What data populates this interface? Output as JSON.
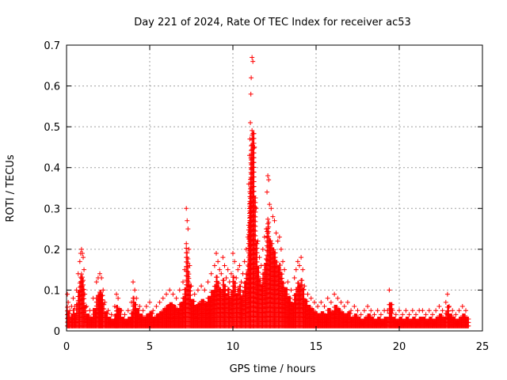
{
  "chart_data": {
    "type": "scatter",
    "title": "Day 221 of 2024, Rate Of TEC Index for receiver ac53",
    "xlabel": "GPS time / hours",
    "ylabel": "ROTI / TECUs",
    "xlim": [
      0,
      25
    ],
    "ylim": [
      0,
      0.7
    ],
    "xticks": [
      "0",
      "5",
      "10",
      "15",
      "20",
      "25"
    ],
    "yticks": [
      "0",
      "0.1",
      "0.2",
      "0.3",
      "0.4",
      "0.5",
      "0.6",
      "0.7"
    ],
    "grid": true,
    "marker": "plus",
    "color": "#ff0000",
    "series": [
      {
        "x": [
          0.05,
          0.1,
          0.2,
          0.3,
          0.4,
          0.5,
          0.6,
          0.7,
          0.8,
          0.85,
          0.9,
          0.95,
          1.0,
          1.05,
          1.1,
          1.2,
          1.4,
          1.6,
          1.8,
          1.9,
          2.0,
          2.1,
          2.2,
          2.3,
          2.5,
          2.7,
          2.9,
          3.0,
          3.1,
          3.3,
          3.5,
          3.7,
          3.9,
          4.0,
          4.1,
          4.2,
          4.4,
          4.6,
          4.8,
          5.0,
          5.2,
          5.4,
          5.6,
          5.8,
          6.0,
          6.2,
          6.4,
          6.6,
          6.8,
          7.0,
          7.1,
          7.2,
          7.25,
          7.3,
          7.35,
          7.4,
          7.5,
          7.7,
          7.9,
          8.1,
          8.3,
          8.5,
          8.7,
          8.9,
          9.0,
          9.1,
          9.2,
          9.3,
          9.4,
          9.5,
          9.6,
          9.7,
          9.8,
          9.9,
          10.0,
          10.1,
          10.2,
          10.3,
          10.4,
          10.5,
          10.6,
          10.7,
          10.8,
          10.9,
          10.95,
          11.0,
          11.02,
          11.05,
          11.08,
          11.1,
          11.15,
          11.2,
          11.3,
          11.4,
          11.5,
          11.6,
          11.7,
          11.8,
          11.9,
          12.0,
          12.05,
          12.1,
          12.15,
          12.2,
          12.3,
          12.4,
          12.5,
          12.6,
          12.7,
          12.8,
          12.9,
          13.0,
          13.1,
          13.3,
          13.5,
          13.7,
          13.8,
          13.9,
          14.0,
          14.1,
          14.2,
          14.3,
          14.5,
          14.7,
          14.9,
          15.1,
          15.3,
          15.5,
          15.7,
          15.9,
          16.1,
          16.3,
          16.5,
          16.7,
          16.9,
          17.1,
          17.3,
          17.5,
          17.7,
          17.9,
          18.1,
          18.3,
          18.5,
          18.7,
          18.9,
          19.1,
          19.3,
          19.4,
          19.6,
          19.8,
          20.0,
          20.2,
          20.4,
          20.6,
          20.8,
          21.0,
          21.2,
          21.4,
          21.6,
          21.8,
          22.0,
          22.2,
          22.4,
          22.6,
          22.8,
          22.9,
          23.0,
          23.2,
          23.4,
          23.6,
          23.8,
          24.0
        ],
        "y": [
          0.09,
          0.07,
          0.05,
          0.06,
          0.08,
          0.06,
          0.1,
          0.14,
          0.17,
          0.19,
          0.2,
          0.19,
          0.18,
          0.15,
          0.09,
          0.06,
          0.05,
          0.08,
          0.12,
          0.13,
          0.14,
          0.13,
          0.1,
          0.07,
          0.05,
          0.04,
          0.06,
          0.09,
          0.08,
          0.05,
          0.04,
          0.05,
          0.07,
          0.12,
          0.1,
          0.08,
          0.06,
          0.05,
          0.06,
          0.07,
          0.05,
          0.06,
          0.07,
          0.08,
          0.09,
          0.1,
          0.09,
          0.08,
          0.1,
          0.12,
          0.15,
          0.3,
          0.27,
          0.25,
          0.2,
          0.16,
          0.11,
          0.09,
          0.1,
          0.11,
          0.1,
          0.12,
          0.14,
          0.16,
          0.19,
          0.17,
          0.15,
          0.14,
          0.18,
          0.16,
          0.13,
          0.15,
          0.12,
          0.14,
          0.19,
          0.17,
          0.13,
          0.15,
          0.16,
          0.12,
          0.14,
          0.17,
          0.2,
          0.23,
          0.36,
          0.43,
          0.47,
          0.51,
          0.58,
          0.62,
          0.67,
          0.66,
          0.45,
          0.3,
          0.22,
          0.18,
          0.16,
          0.2,
          0.23,
          0.25,
          0.34,
          0.38,
          0.37,
          0.31,
          0.3,
          0.28,
          0.27,
          0.24,
          0.22,
          0.23,
          0.2,
          0.17,
          0.15,
          0.12,
          0.1,
          0.13,
          0.15,
          0.17,
          0.16,
          0.18,
          0.15,
          0.11,
          0.09,
          0.08,
          0.07,
          0.06,
          0.07,
          0.06,
          0.08,
          0.07,
          0.09,
          0.08,
          0.07,
          0.06,
          0.07,
          0.05,
          0.06,
          0.05,
          0.04,
          0.05,
          0.06,
          0.05,
          0.04,
          0.05,
          0.04,
          0.05,
          0.05,
          0.1,
          0.05,
          0.04,
          0.05,
          0.04,
          0.05,
          0.04,
          0.05,
          0.04,
          0.05,
          0.05,
          0.04,
          0.05,
          0.04,
          0.05,
          0.06,
          0.05,
          0.07,
          0.09,
          0.06,
          0.05,
          0.04,
          0.05,
          0.06,
          0.05
        ]
      }
    ]
  }
}
